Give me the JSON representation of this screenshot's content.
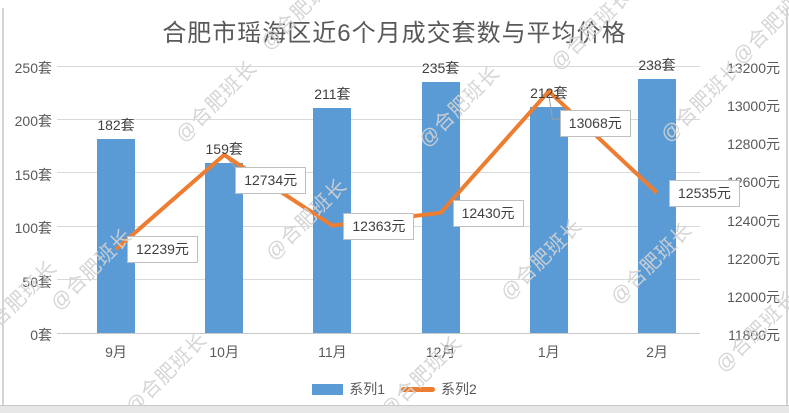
{
  "title": "合肥市瑶海区近6个月成交套数与平均价格",
  "watermark_text": "@合肥班长",
  "legend": {
    "series1_label": "系列1",
    "series2_label": "系列2"
  },
  "colors": {
    "bar_fill": "#5B9BD5",
    "line_stroke": "#ED7D31",
    "gridline": "#D9D9D9",
    "axis_text": "#595959",
    "data_label_text": "#404040",
    "annotation_border": "#BFBFBF",
    "watermark": "#D2D2D2"
  },
  "chart_data": {
    "type": "combo",
    "title": "合肥市瑶海区近6个月成交套数与平均价格",
    "categories": [
      "9月",
      "10月",
      "11月",
      "12月",
      "1月",
      "2月"
    ],
    "series": [
      {
        "name": "系列1",
        "type": "bar",
        "axis": "left",
        "unit": "套",
        "values": [
          182,
          159,
          211,
          235,
          212,
          238
        ],
        "data_labels": [
          "182套",
          "159套",
          "211套",
          "235套",
          "212套",
          "238套"
        ]
      },
      {
        "name": "系列2",
        "type": "line",
        "axis": "right",
        "unit": "元",
        "values": [
          12239,
          12734,
          12363,
          12430,
          13068,
          12535
        ],
        "data_labels": [
          "12239元",
          "12734元",
          "12363元",
          "12430元",
          "13068元",
          "12535元"
        ]
      }
    ],
    "left_axis": {
      "min": 0,
      "max": 250,
      "step": 50,
      "tick_labels": [
        "250套",
        "200套",
        "150套",
        "100套",
        "50套",
        "0套"
      ]
    },
    "right_axis": {
      "min": 11800,
      "max": 13200,
      "step": 200,
      "tick_labels": [
        "13200元",
        "13000元",
        "12800元",
        "12600元",
        "12400元",
        "12200元",
        "12000元",
        "11800元"
      ]
    },
    "legend_entries": [
      "系列1",
      "系列2"
    ],
    "legend_position": "bottom",
    "grid": true
  }
}
